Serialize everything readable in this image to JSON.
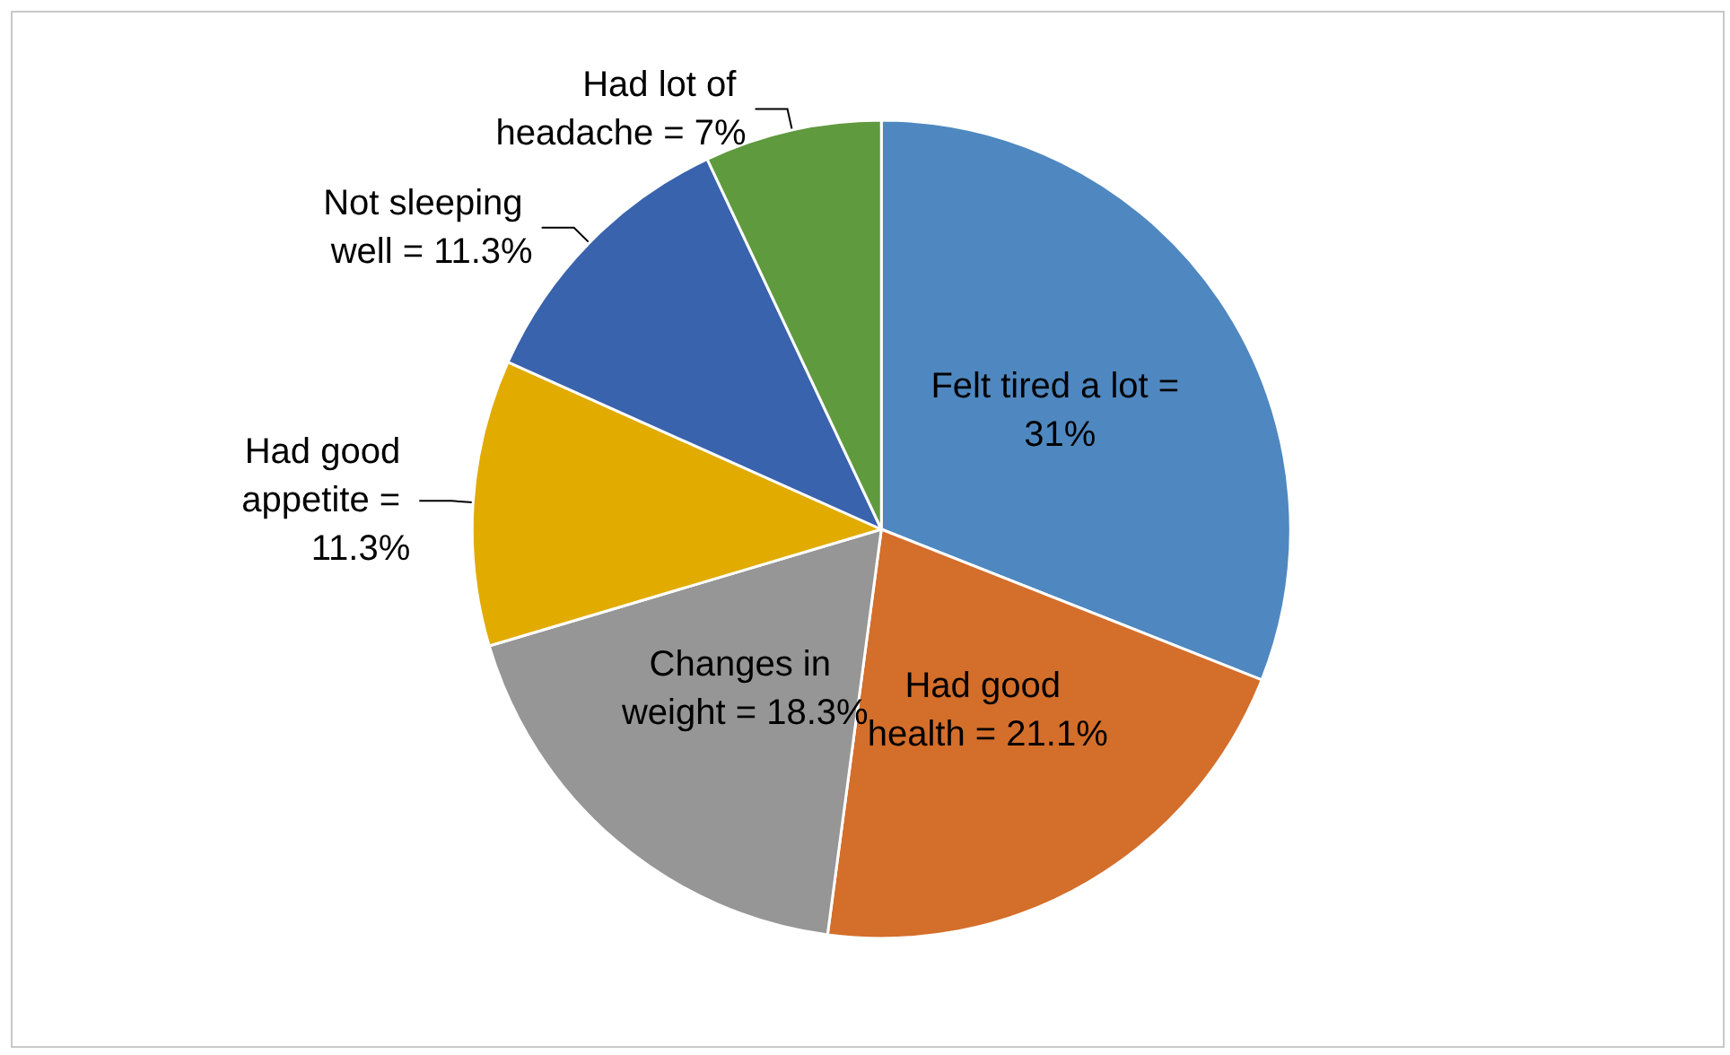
{
  "chart_data": {
    "type": "pie",
    "categories": [
      "Felt tired a lot",
      "Had good health",
      "Changes in weight",
      "Had good appetite",
      "Not sleeping well",
      "Had lot of headache"
    ],
    "values": [
      31,
      21.1,
      18.3,
      11.3,
      11.3,
      7
    ],
    "colors": [
      "#4f88c0",
      "#d46e2b",
      "#969696",
      "#e2ab00",
      "#3a63ad",
      "#5f9a3e"
    ],
    "value_labels": [
      "= 31%",
      "= 21.1%",
      "= 18.3%",
      "= 11.3%",
      "= 11.3%",
      "= 7%"
    ],
    "legend": false
  }
}
